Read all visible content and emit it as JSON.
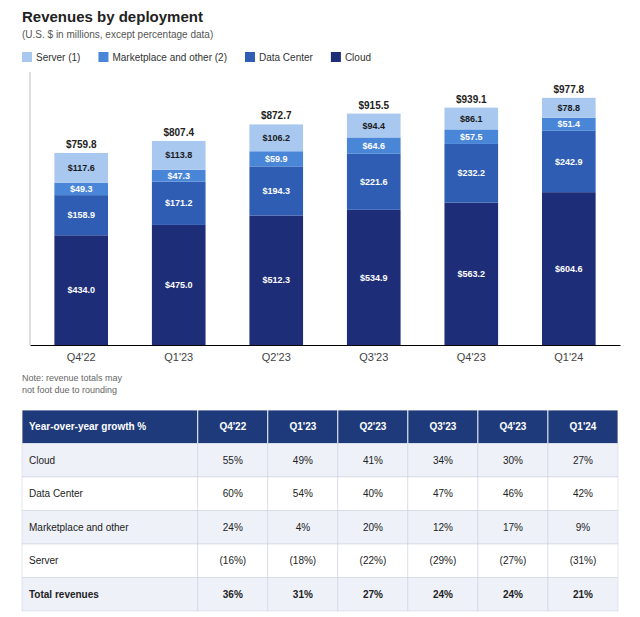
{
  "chart_data": {
    "type": "bar",
    "title": "Revenues by deployment",
    "subtitle": "(U.S. $ in millions, except percentage data)",
    "categories": [
      "Q4'22",
      "Q1'23",
      "Q2'23",
      "Q3'23",
      "Q4'23",
      "Q1'24"
    ],
    "stacked": true,
    "data_labels": true,
    "grid": false,
    "legend": "upper left",
    "tick_labels": "x",
    "ylim": [
      0,
      1080
    ],
    "series": [
      {
        "name": "Cloud",
        "color": "#1e2d78",
        "values": [
          434.0,
          475.0,
          512.3,
          534.9,
          563.2,
          604.6
        ],
        "value_labels": [
          "$434.0",
          "$475.0",
          "$512.3",
          "$534.9",
          "$563.2",
          "$604.6"
        ]
      },
      {
        "name": "Data Center",
        "color": "#2e5db3",
        "values": [
          158.9,
          171.2,
          194.3,
          221.6,
          232.2,
          242.9
        ],
        "value_labels": [
          "$158.9",
          "$171.2",
          "$194.3",
          "$221.6",
          "$232.2",
          "$242.9"
        ]
      },
      {
        "name": "Marketplace and other (2)",
        "color": "#4a86d8",
        "values": [
          49.3,
          47.3,
          59.9,
          64.6,
          57.5,
          51.4
        ],
        "value_labels": [
          "$49.3",
          "$47.3",
          "$59.9",
          "$64.6",
          "$57.5",
          "$51.4"
        ]
      },
      {
        "name": "Server (1)",
        "color": "#a8c8f0",
        "values": [
          117.6,
          113.8,
          106.2,
          94.4,
          86.1,
          78.8
        ],
        "value_labels": [
          "$117.6",
          "$113.8",
          "$106.2",
          "$94.4",
          "$86.1",
          "$78.8"
        ]
      }
    ],
    "totals": {
      "values": [
        759.8,
        807.4,
        872.7,
        915.5,
        939.1,
        977.8
      ],
      "value_labels": [
        "$759.8",
        "$807.4",
        "$872.7",
        "$915.5",
        "$939.1",
        "$977.8"
      ]
    },
    "note": "Note: revenue totals may\nnot foot due to rounding",
    "table": {
      "color": "#1e3a7a",
      "header": [
        "Year-over-year growth %",
        "Q4'22",
        "Q1'23",
        "Q2'23",
        "Q3'23",
        "Q4'23",
        "Q1'24"
      ],
      "rows": [
        [
          "Cloud",
          "55%",
          "49%",
          "41%",
          "34%",
          "30%",
          "27%"
        ],
        [
          "Data Center",
          "60%",
          "54%",
          "40%",
          "47%",
          "46%",
          "42%"
        ],
        [
          "Marketplace and other",
          "24%",
          "4%",
          "20%",
          "12%",
          "17%",
          "9%"
        ],
        [
          "Server",
          "(16%)",
          "(18%)",
          "(22%)",
          "(29%)",
          "(27%)",
          "(31%)"
        ],
        [
          "Total revenues",
          "36%",
          "31%",
          "27%",
          "24%",
          "24%",
          "21%"
        ]
      ]
    }
  }
}
